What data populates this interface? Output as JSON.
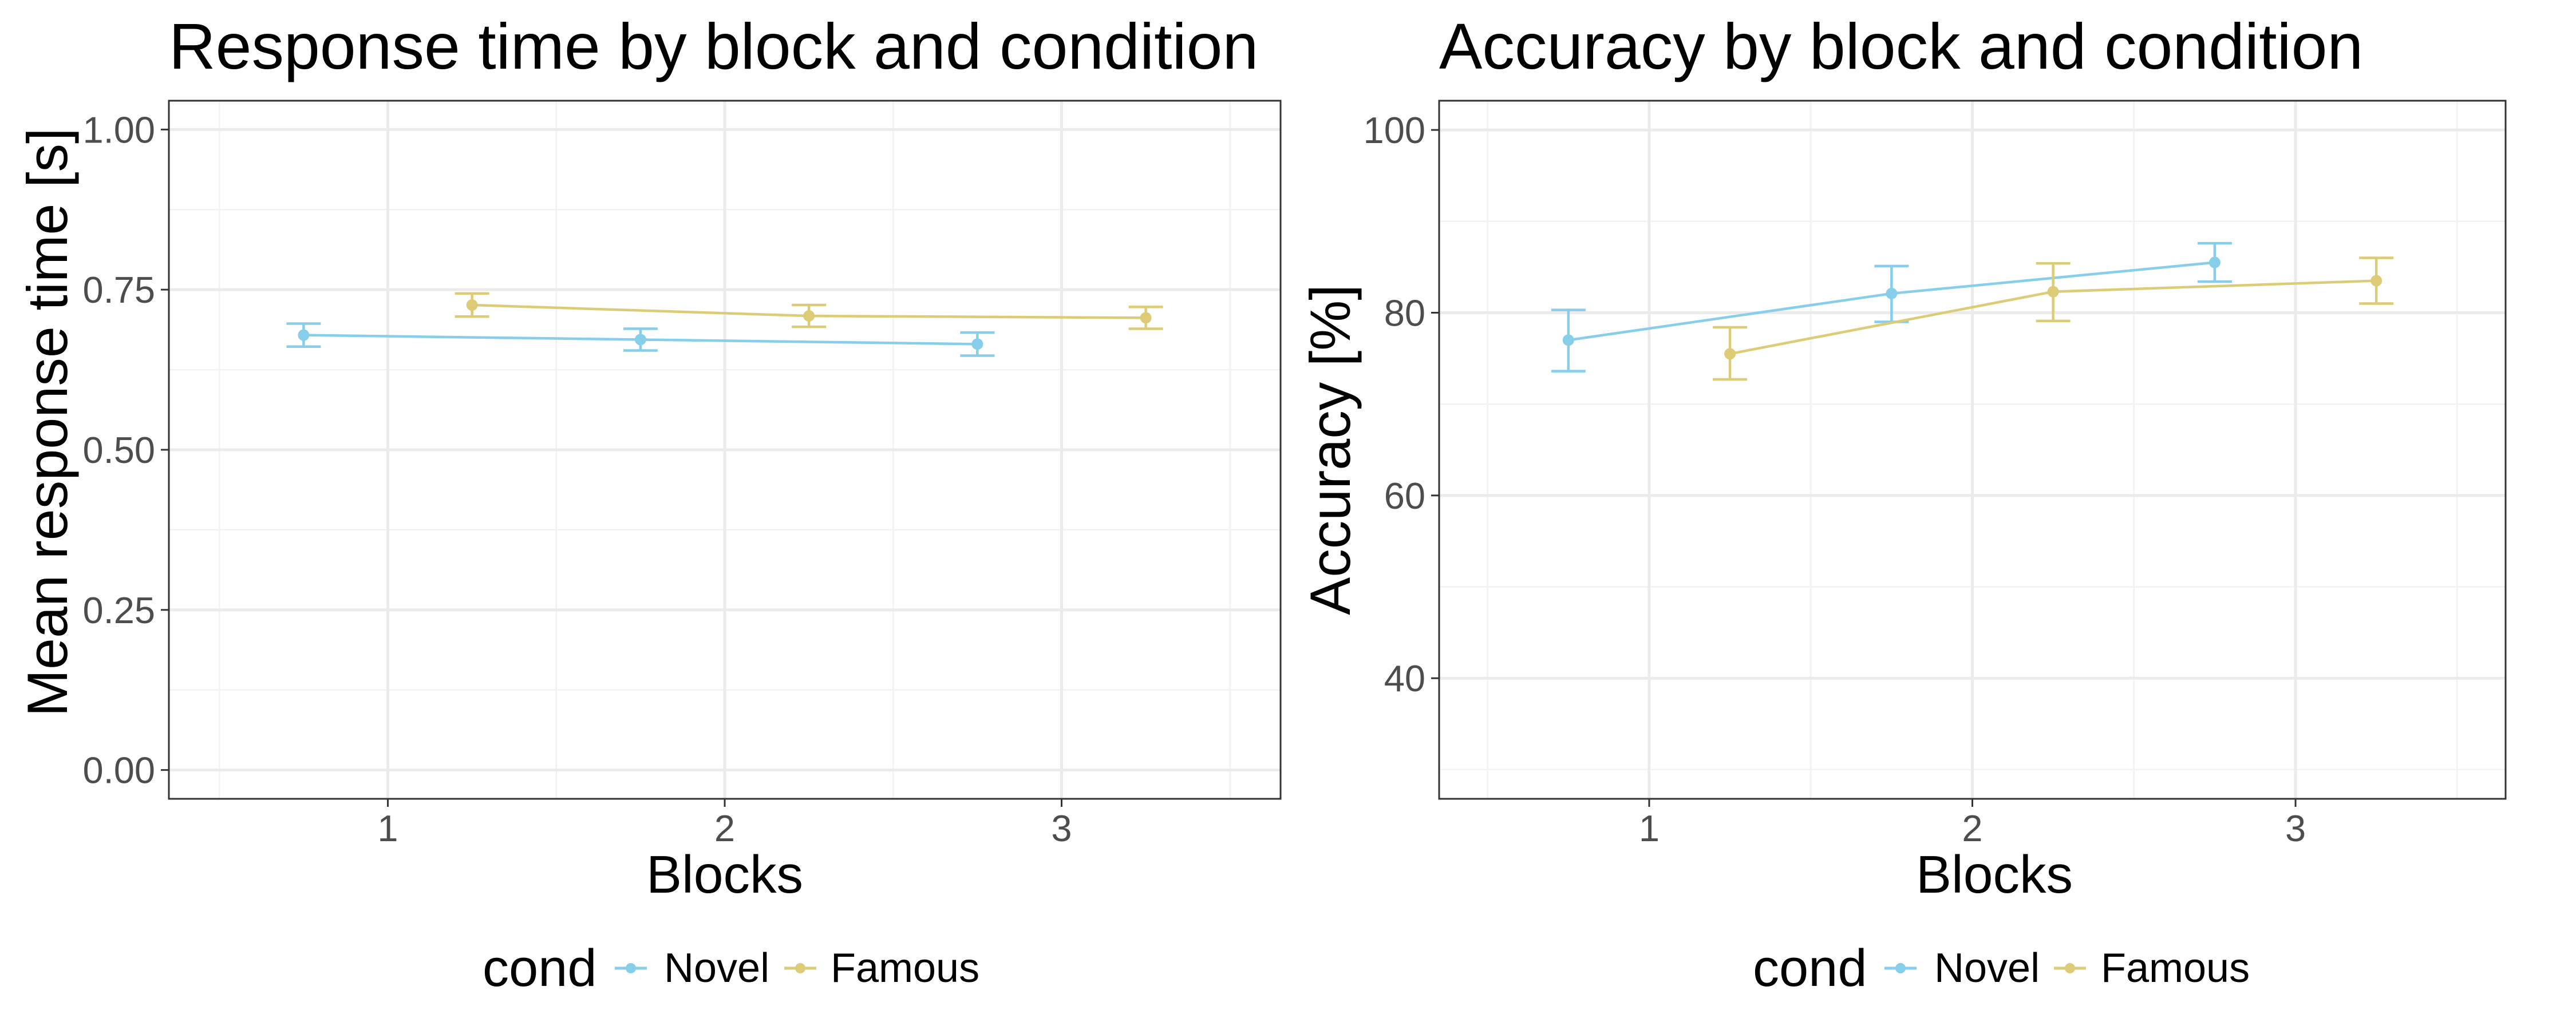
{
  "chart_data": [
    {
      "type": "line",
      "title": "Response time by block and condition",
      "xlabel": "Blocks",
      "ylabel": "Mean response time [s]",
      "xlim": [
        0.35,
        3.65
      ],
      "ylim": [
        -0.045,
        1.045
      ],
      "x_ticks": [
        1,
        2,
        3
      ],
      "x_tick_labels": [
        "1",
        "2",
        "3"
      ],
      "y_ticks": [
        0,
        0.25,
        0.5,
        0.75,
        1.0
      ],
      "y_tick_labels": [
        "0.00",
        "0.25",
        "0.50",
        "0.75",
        "1.00"
      ],
      "grid": true,
      "legend": {
        "title": "cond",
        "position": "bottom"
      },
      "series": [
        {
          "name": "Novel",
          "color": "#87CEEB",
          "points": [
            {
              "x": 0.75,
              "y": 0.679,
              "ymin": 0.661,
              "ymax": 0.697
            },
            {
              "x": 1.75,
              "y": 0.672,
              "ymin": 0.655,
              "ymax": 0.689
            },
            {
              "x": 2.75,
              "y": 0.665,
              "ymin": 0.647,
              "ymax": 0.683
            }
          ]
        },
        {
          "name": "Famous",
          "color": "#DDCC77",
          "points": [
            {
              "x": 1.25,
              "y": 0.726,
              "ymin": 0.708,
              "ymax": 0.744
            },
            {
              "x": 2.25,
              "y": 0.709,
              "ymin": 0.692,
              "ymax": 0.726
            },
            {
              "x": 3.25,
              "y": 0.706,
              "ymin": 0.689,
              "ymax": 0.723
            }
          ]
        }
      ]
    },
    {
      "type": "line",
      "title": "Accuracy by block and condition",
      "xlabel": "Blocks",
      "ylabel": "Accuracy [%]",
      "xlim": [
        0.35,
        3.65
      ],
      "ylim": [
        26.8,
        103.2
      ],
      "x_ticks": [
        1,
        2,
        3
      ],
      "x_tick_labels": [
        "1",
        "2",
        "3"
      ],
      "y_ticks": [
        40,
        60,
        80,
        100
      ],
      "y_tick_labels": [
        "40",
        "60",
        "80",
        "100"
      ],
      "grid": true,
      "legend": {
        "title": "cond",
        "position": "bottom"
      },
      "series": [
        {
          "name": "Novel",
          "color": "#87CEEB",
          "points": [
            {
              "x": 0.75,
              "y": 77.0,
              "ymin": 73.6,
              "ymax": 80.3
            },
            {
              "x": 1.75,
              "y": 82.1,
              "ymin": 79.0,
              "ymax": 85.1
            },
            {
              "x": 2.75,
              "y": 85.5,
              "ymin": 83.4,
              "ymax": 87.6
            }
          ]
        },
        {
          "name": "Famous",
          "color": "#DDCC77",
          "points": [
            {
              "x": 1.25,
              "y": 75.5,
              "ymin": 72.7,
              "ymax": 78.4
            },
            {
              "x": 2.25,
              "y": 82.3,
              "ymin": 79.1,
              "ymax": 85.4
            },
            {
              "x": 3.25,
              "y": 83.5,
              "ymin": 81.0,
              "ymax": 86.0
            }
          ]
        }
      ]
    }
  ]
}
